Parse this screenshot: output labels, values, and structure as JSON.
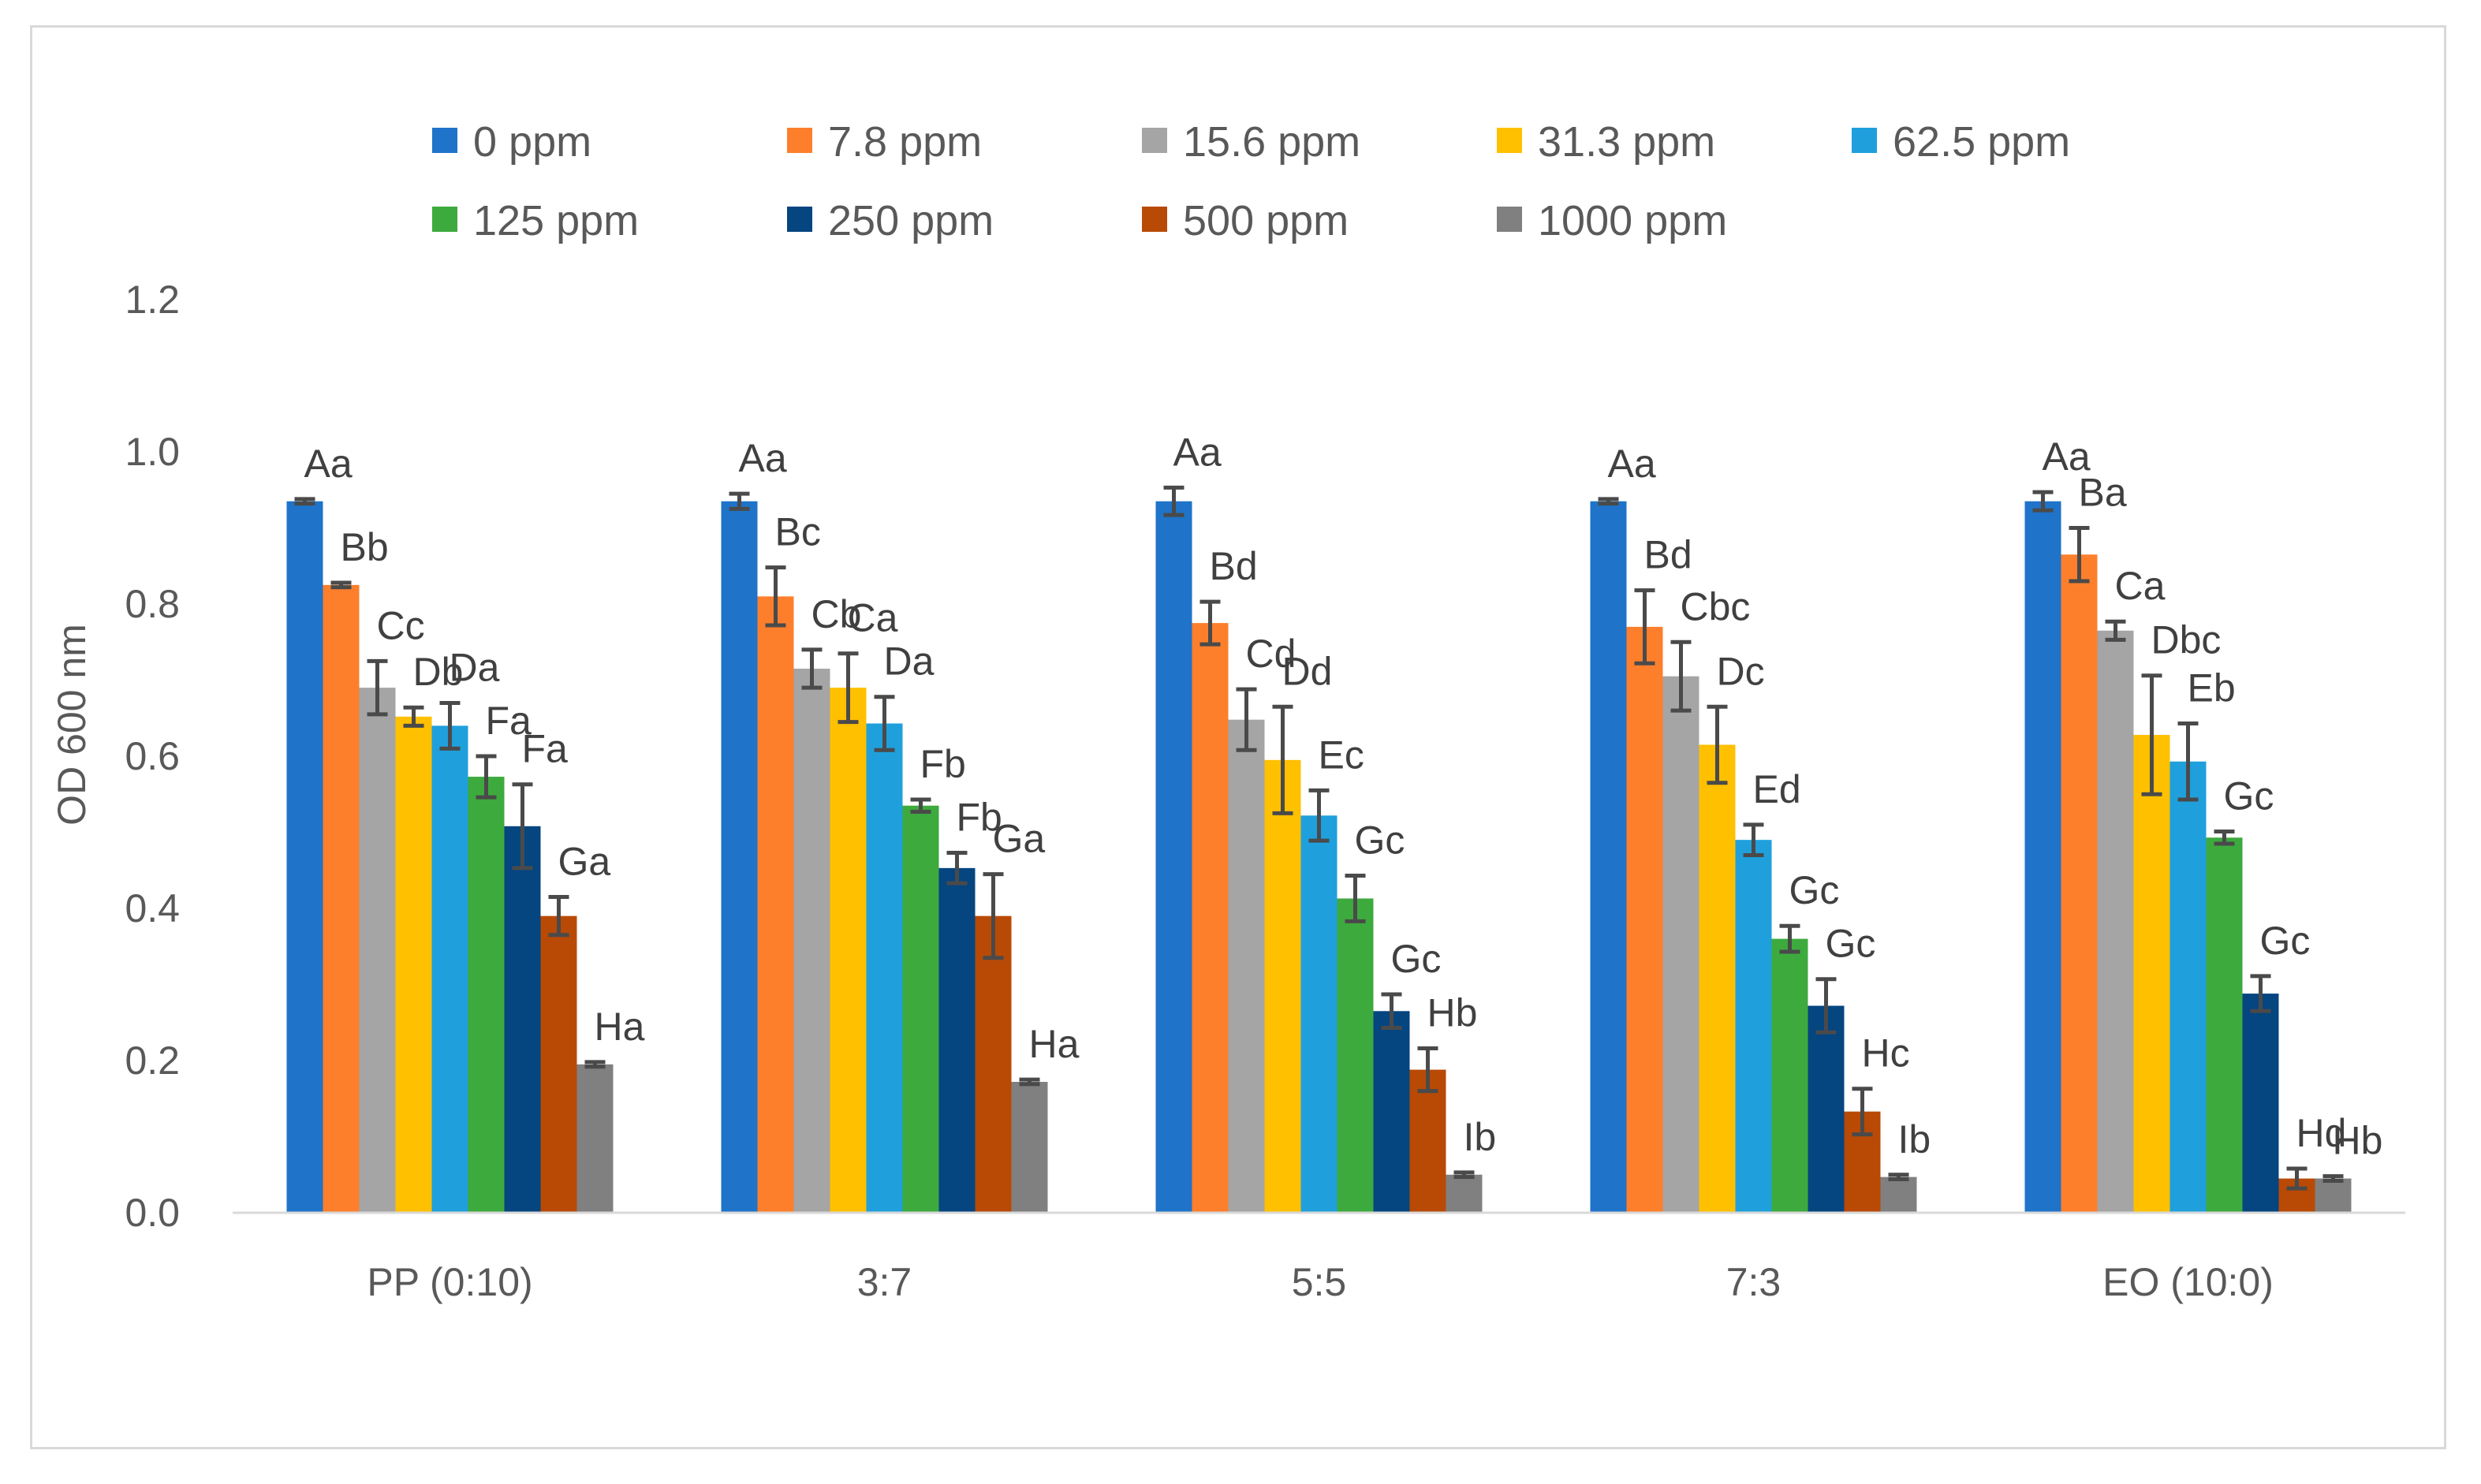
{
  "chart_data": {
    "type": "bar",
    "title": "",
    "xlabel": "",
    "ylabel": "OD 600 nm",
    "ylim": [
      0,
      1.2
    ],
    "yticks": [
      "0.0",
      "0.2",
      "0.4",
      "0.6",
      "0.8",
      "1.0",
      "1.2"
    ],
    "grid": false,
    "legend_position": "top",
    "categories": [
      "PP (0:10)",
      "3:7",
      "5:5",
      "7:3",
      "EO (10:0)"
    ],
    "series": [
      {
        "name": "0 ppm",
        "color": "#1f73c9",
        "values": [
          0.935,
          0.935,
          0.935,
          0.935,
          0.935
        ],
        "errors": [
          0.003,
          0.01,
          0.018,
          0.003,
          0.012
        ],
        "letters": [
          "Aa",
          "Aa",
          "Aa",
          "Aa",
          "Aa"
        ]
      },
      {
        "name": "7.8 ppm",
        "color": "#fd7f2c",
        "values": [
          0.825,
          0.81,
          0.775,
          0.77,
          0.865
        ],
        "errors": [
          0.003,
          0.038,
          0.028,
          0.048,
          0.035
        ],
        "letters": [
          "Bb",
          "Bc",
          "Bd",
          "Bd",
          "Ba"
        ]
      },
      {
        "name": "15.6 ppm",
        "color": "#a5a5a5",
        "values": [
          0.69,
          0.715,
          0.648,
          0.705,
          0.765
        ],
        "errors": [
          0.035,
          0.025,
          0.04,
          0.045,
          0.012
        ],
        "letters": [
          "Cc",
          "Cb",
          "Cd",
          "Cbc",
          "Ca"
        ]
      },
      {
        "name": "31.3 ppm",
        "color": "#ffc000",
        "values": [
          0.652,
          0.69,
          0.595,
          0.615,
          0.628
        ],
        "errors": [
          0.012,
          0.045,
          0.07,
          0.05,
          0.078
        ],
        "letters": [
          "Db",
          "Ca",
          "Dd",
          "Dc",
          "Dbc"
        ]
      },
      {
        "name": "62.5 ppm",
        "color": "#1fa0dc",
        "values": [
          0.64,
          0.643,
          0.522,
          0.49,
          0.593
        ],
        "errors": [
          0.03,
          0.035,
          0.033,
          0.02,
          0.05
        ],
        "letters": [
          "Da",
          "Da",
          "Ec",
          "Ed",
          "Eb"
        ]
      },
      {
        "name": "125 ppm",
        "color": "#3daa3d",
        "values": [
          0.573,
          0.535,
          0.413,
          0.36,
          0.493
        ],
        "errors": [
          0.027,
          0.008,
          0.03,
          0.017,
          0.008
        ],
        "letters": [
          "Fa",
          "Fb",
          "Gc",
          "Gc",
          "Gc"
        ]
      },
      {
        "name": "250 ppm",
        "color": "#054580",
        "values": [
          0.508,
          0.453,
          0.265,
          0.272,
          0.288
        ],
        "errors": [
          0.055,
          0.02,
          0.022,
          0.035,
          0.023
        ],
        "letters": [
          "Fa",
          "Fb",
          "Gc",
          "Gc",
          "Gc"
        ]
      },
      {
        "name": "500 ppm",
        "color": "#b84a06",
        "values": [
          0.39,
          0.39,
          0.188,
          0.133,
          0.045
        ],
        "errors": [
          0.025,
          0.055,
          0.028,
          0.03,
          0.013
        ],
        "letters": [
          "Ga",
          "Ga",
          "Hb",
          "Hc",
          "Hd"
        ]
      },
      {
        "name": "1000 ppm",
        "color": "#808080",
        "values": [
          0.195,
          0.172,
          0.05,
          0.047,
          0.045
        ],
        "errors": [
          0.003,
          0.003,
          0.003,
          0.003,
          0.003
        ],
        "letters": [
          "Ha",
          "Ha",
          "Ib",
          "Ib",
          "Hb"
        ]
      }
    ]
  }
}
